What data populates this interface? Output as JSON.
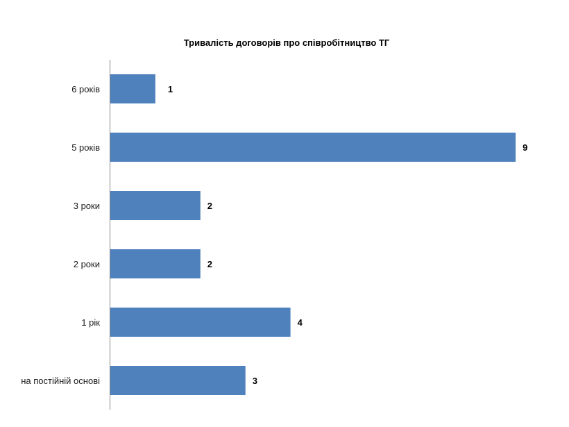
{
  "chart_data": {
    "type": "bar",
    "orientation": "horizontal",
    "title": "Тривалість  договорів  про співробітництво  ТГ",
    "categories": [
      "6 років",
      "5 років",
      "3 роки",
      "2 роки",
      "1 рік",
      "на постійній основі"
    ],
    "values": [
      1,
      9,
      2,
      2,
      4,
      3
    ],
    "xlabel": "",
    "ylabel": "",
    "xlim": [
      0,
      9
    ],
    "grid": false,
    "legend": "none",
    "data_labels": true,
    "bar_color": "#4f81bd"
  }
}
